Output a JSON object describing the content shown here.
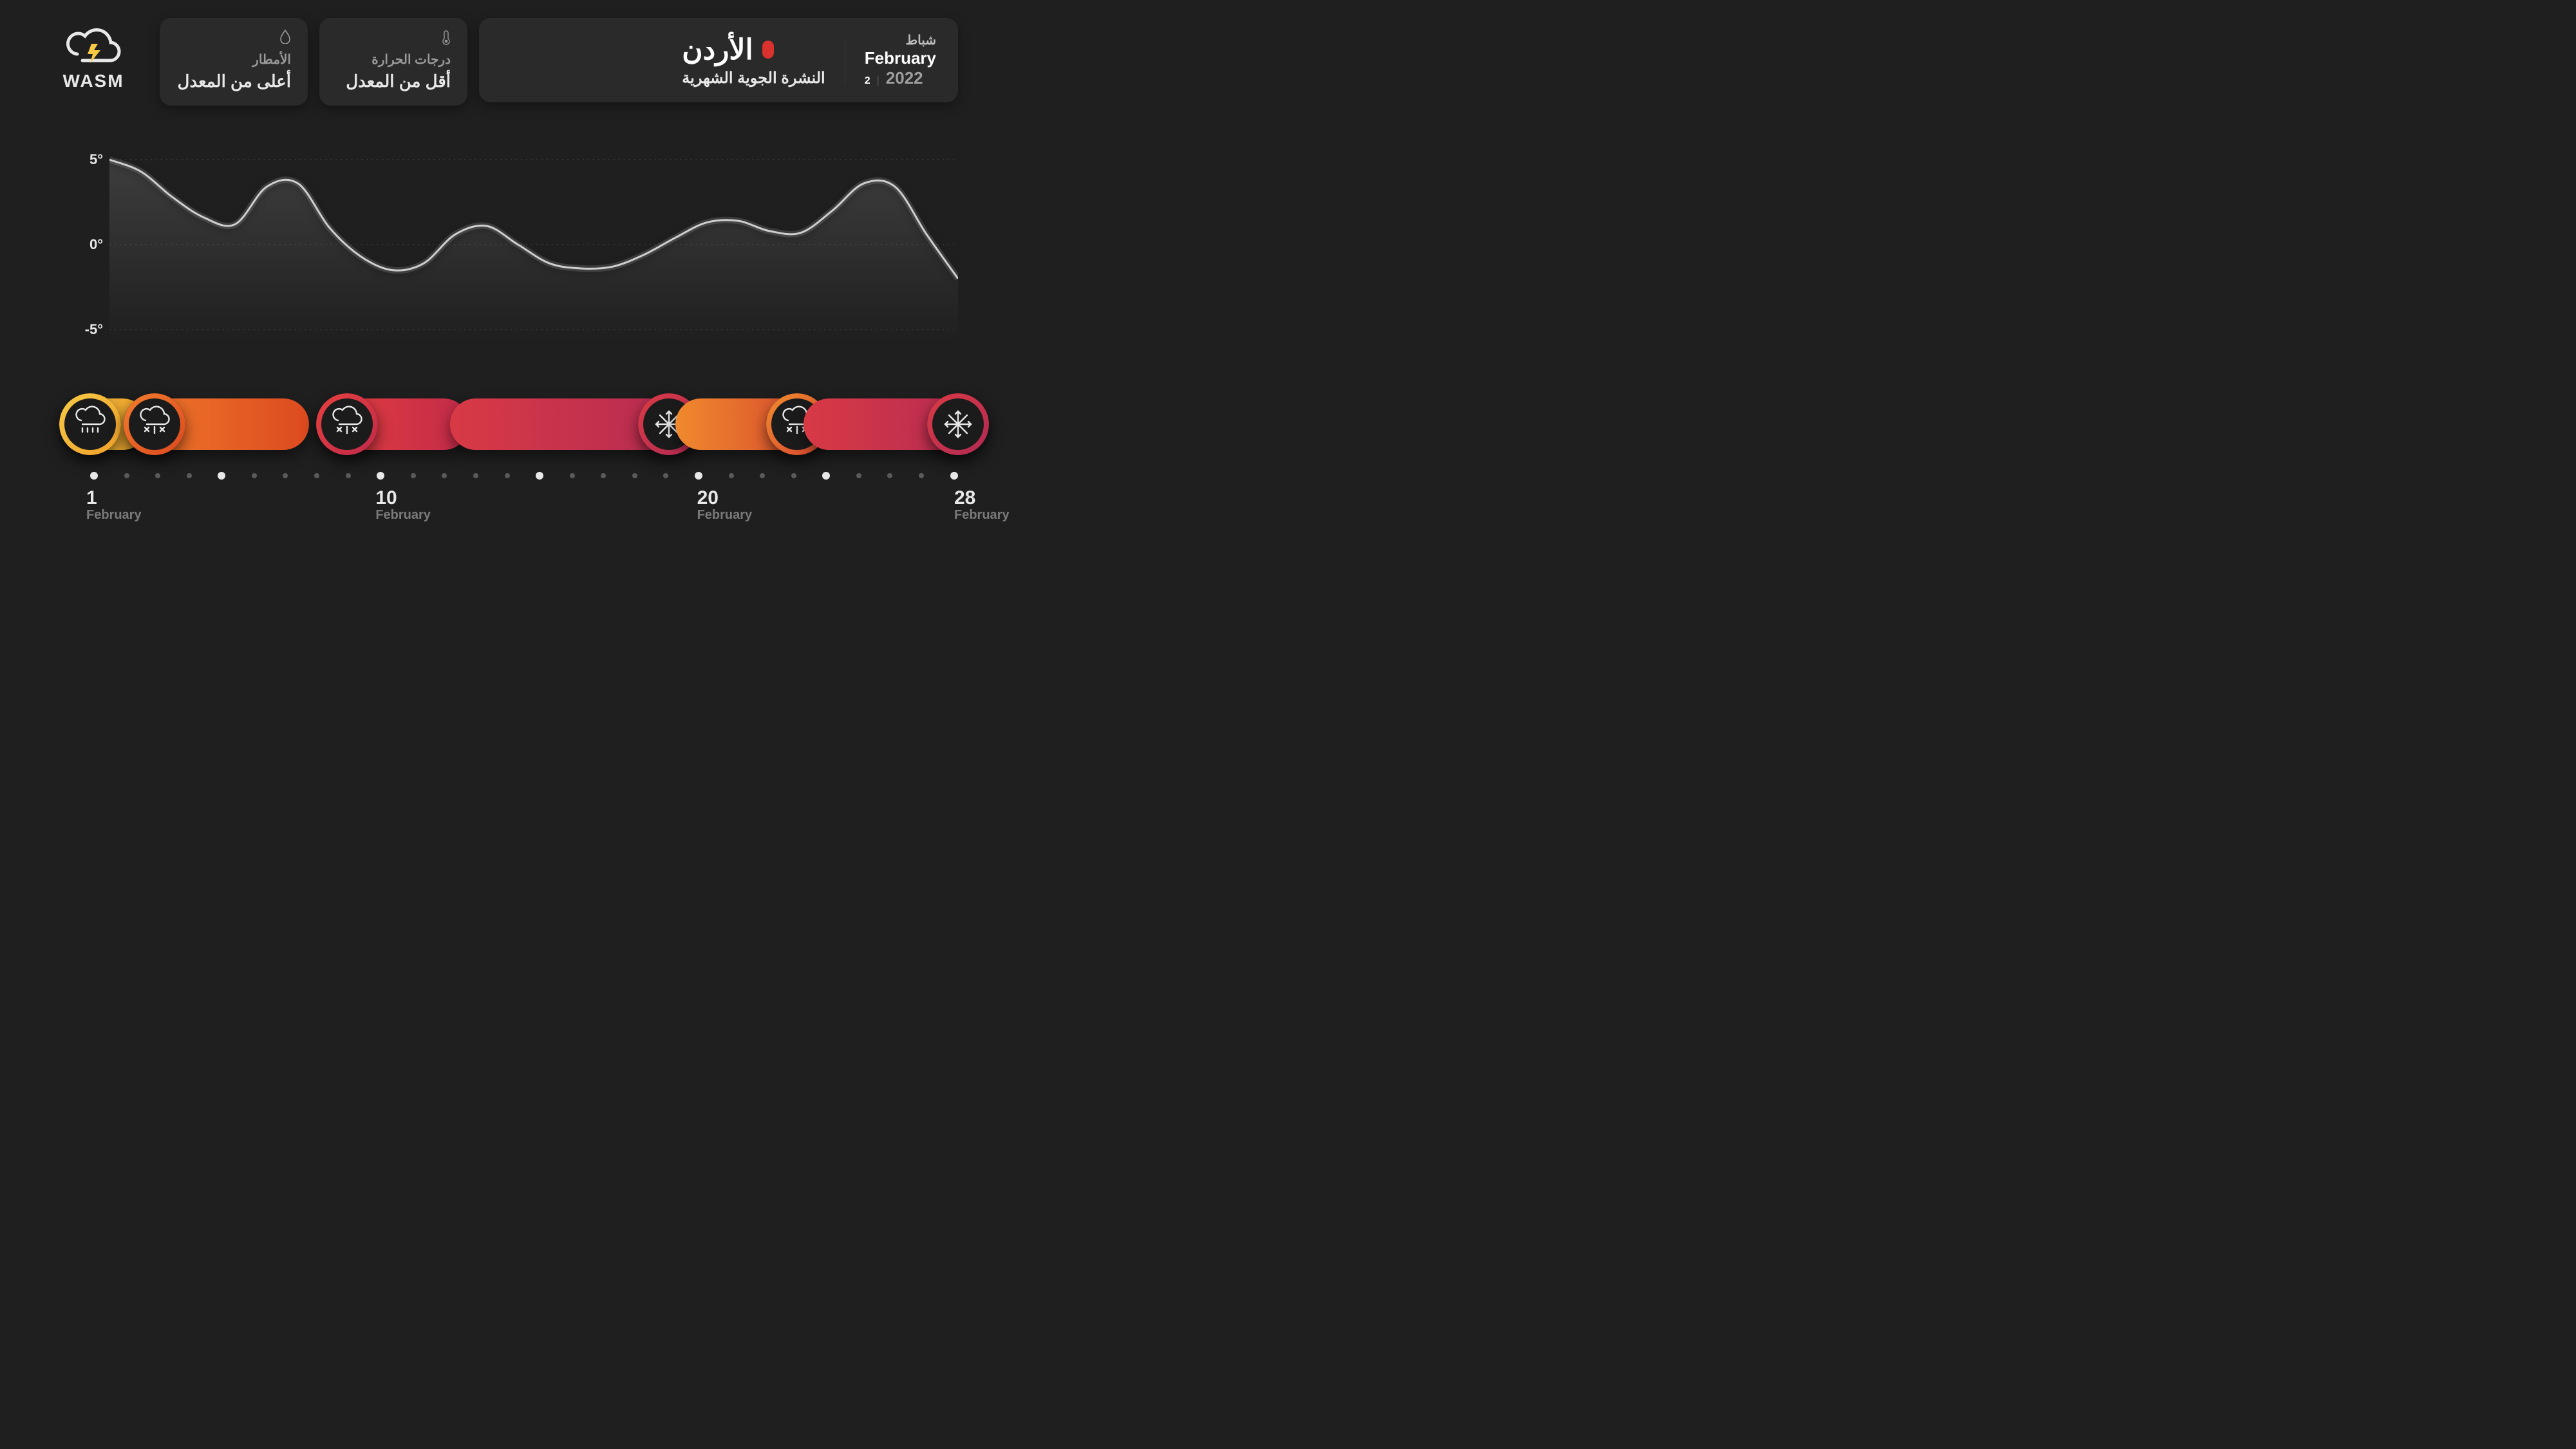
{
  "brand": {
    "name": "WASM"
  },
  "header": {
    "rain": {
      "icon": "droplet-icon",
      "title_ar": "الأمطار",
      "value_ar": "أعلى من المعدل"
    },
    "temp": {
      "icon": "thermometer-icon",
      "title_ar": "درجات الحرارة",
      "value_ar": "أقل من المعدل"
    },
    "country": {
      "name_ar": "الأردن",
      "subtitle_ar": "النشرة الجوية الشهرية",
      "dot_color": "#d8312e"
    },
    "date": {
      "month_ar": "شباط",
      "month_en": "February",
      "month_num": "2",
      "year": "2022"
    }
  },
  "chart": {
    "type": "line",
    "ylabels": [
      "5°",
      "0°",
      "-5°"
    ],
    "ylim": [
      -5,
      5
    ],
    "ytick_values": [
      5,
      0,
      -5
    ],
    "grid_color": "#4a4a4a",
    "line_color": "#cfcfcf",
    "line_width": 3,
    "background_color": "#1f1f1f",
    "area_gradient_top": "rgba(200,200,200,0.18)",
    "area_gradient_bottom": "rgba(200,200,200,0)",
    "x_days": [
      1,
      2,
      3,
      4,
      5,
      6,
      7,
      8,
      9,
      10,
      11,
      12,
      13,
      14,
      15,
      16,
      17,
      18,
      19,
      20,
      21,
      22,
      23,
      24,
      25,
      26,
      27,
      28
    ],
    "y_values": [
      5,
      4.3,
      2.8,
      1.6,
      1.2,
      3.4,
      3.6,
      1.0,
      -0.7,
      -1.5,
      -1.1,
      0.6,
      1.1,
      0.0,
      -1.1,
      -1.4,
      -1.3,
      -0.6,
      0.4,
      1.3,
      1.4,
      0.8,
      0.7,
      2.0,
      3.6,
      3.4,
      0.6,
      -2.0
    ]
  },
  "timeline": {
    "days_total": 28,
    "major_days": [
      1,
      5,
      10,
      15,
      20,
      24,
      28
    ],
    "xlabels": [
      {
        "day": "1",
        "month": "February",
        "at_day": 1
      },
      {
        "day": "10",
        "month": "February",
        "at_day": 10
      },
      {
        "day": "20",
        "month": "February",
        "at_day": 20
      },
      {
        "day": "28",
        "month": "February",
        "at_day": 28
      }
    ],
    "events": [
      {
        "start_day": 1,
        "end_day": 2,
        "pill_gradient": [
          "#f6c945",
          "#f0a02a"
        ],
        "ring_gradient": [
          "#f6c945",
          "#f0a02a"
        ],
        "icon": "rain",
        "icon_side": "left"
      },
      {
        "start_day": 3,
        "end_day": 7,
        "pill_gradient": [
          "#f17b2c",
          "#dc4a1f"
        ],
        "ring_gradient": [
          "#f17b2c",
          "#dc4a1f"
        ],
        "icon": "rain-snow",
        "icon_side": "left"
      },
      {
        "start_day": 9,
        "end_day": 12,
        "pill_gradient": [
          "#e6403f",
          "#c12a49"
        ],
        "ring_gradient": [
          "#e6403f",
          "#c12a49"
        ],
        "icon": "rain-snow",
        "icon_side": "left"
      },
      {
        "start_day": 13,
        "end_day": 19,
        "pill_gradient": [
          "#d83a45",
          "#b42a53"
        ],
        "ring_gradient": [
          "#d83a45",
          "#b42a53"
        ],
        "icon": "snow",
        "icon_side": "right"
      },
      {
        "start_day": 20,
        "end_day": 23,
        "pill_gradient": [
          "#f08a2e",
          "#d6452e"
        ],
        "ring_gradient": [
          "#f08a2e",
          "#d6452e"
        ],
        "icon": "rain-snow",
        "icon_side": "right"
      },
      {
        "start_day": 24,
        "end_day": 28,
        "pill_gradient": [
          "#d83a45",
          "#b42a53"
        ],
        "ring_gradient": [
          "#d83a45",
          "#b42a53"
        ],
        "icon": "snow",
        "icon_side": "right"
      }
    ],
    "dot_color": "#5a5a5a",
    "dot_major_color": "#e8e8e8"
  },
  "colors": {
    "bg": "#1f1f1f",
    "card_bg": "#2a2a2a",
    "text": "#e8e8e8",
    "muted": "#9a9a9a"
  }
}
